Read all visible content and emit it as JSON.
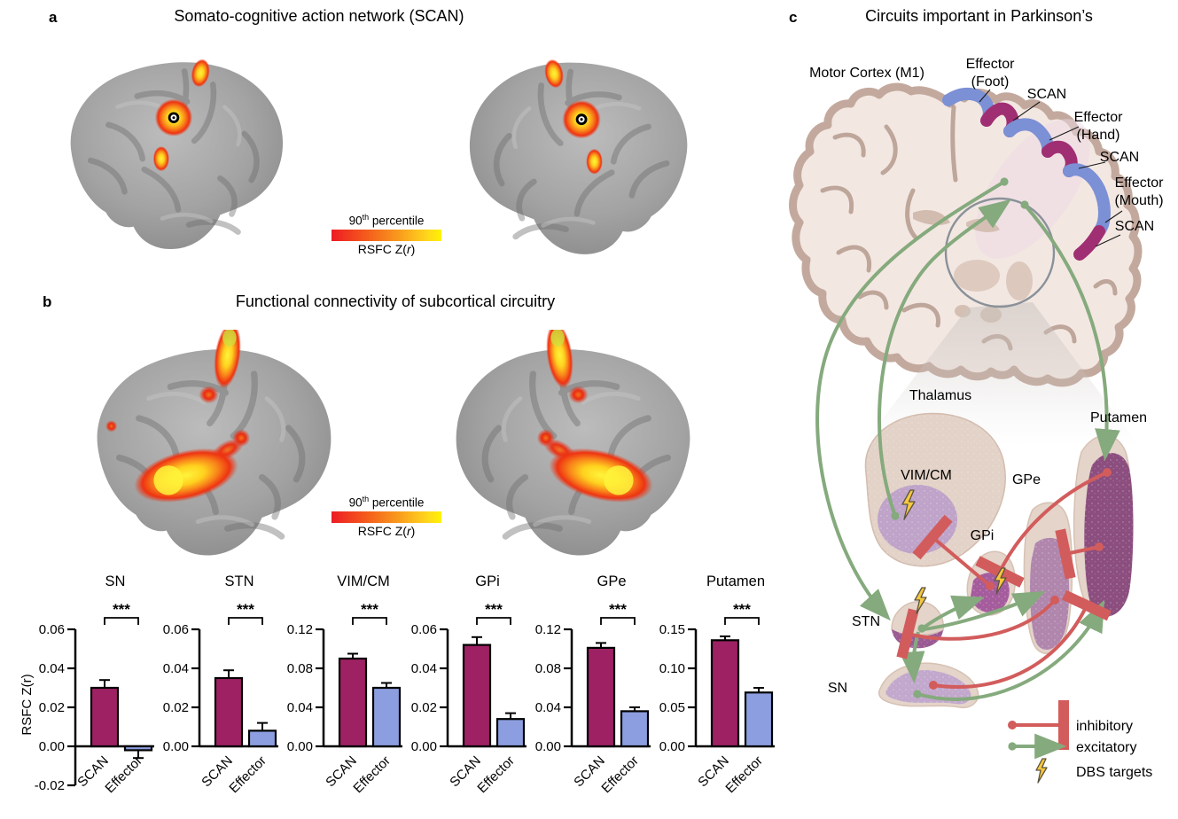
{
  "panel_a": {
    "label": "a",
    "title": "Somato-cognitive action network (SCAN)",
    "colorbar": {
      "percentile_num": "90",
      "percentile_sup": "th",
      "percentile_rest": " percentile",
      "scale_pre": "RSFC Z(",
      "scale_italic": "r",
      "scale_post": ")"
    }
  },
  "panel_b": {
    "label": "b",
    "title": "Functional connectivity of subcortical circuitry",
    "colorbar": {
      "percentile_num": "90",
      "percentile_sup": "th",
      "percentile_rest": " percentile",
      "scale_pre": "RSFC Z(",
      "scale_italic": "r",
      "scale_post": ")"
    }
  },
  "chart_data": {
    "type": "bar",
    "shared": {
      "categories": [
        "SCAN",
        "Effector"
      ],
      "bar_colors": [
        "#9E2164",
        "#8C9EDF"
      ],
      "ylabel": "RSFC Z(r)",
      "significance": "***",
      "grid": false,
      "legend_position": "none"
    },
    "charts": [
      {
        "title": "SN",
        "ylim": [
          -0.02,
          0.06
        ],
        "yticks": [
          -0.02,
          0,
          0.02,
          0.04,
          0.06
        ],
        "values": [
          0.03,
          -0.002
        ],
        "errors": [
          0.004,
          0.004
        ]
      },
      {
        "title": "STN",
        "ylim": [
          0,
          0.06
        ],
        "yticks": [
          0,
          0.02,
          0.04,
          0.06
        ],
        "values": [
          0.035,
          0.008
        ],
        "errors": [
          0.004,
          0.004
        ]
      },
      {
        "title": "VIM/CM",
        "ylim": [
          0,
          0.12
        ],
        "yticks": [
          0,
          0.04,
          0.08,
          0.12
        ],
        "values": [
          0.09,
          0.06
        ],
        "errors": [
          0.005,
          0.005
        ]
      },
      {
        "title": "GPi",
        "ylim": [
          0,
          0.06
        ],
        "yticks": [
          0,
          0.02,
          0.04,
          0.06
        ],
        "values": [
          0.052,
          0.014
        ],
        "errors": [
          0.004,
          0.003
        ]
      },
      {
        "title": "GPe",
        "ylim": [
          0,
          0.12
        ],
        "yticks": [
          0,
          0.04,
          0.08,
          0.12
        ],
        "values": [
          0.101,
          0.036
        ],
        "errors": [
          0.005,
          0.004
        ]
      },
      {
        "title": "Putamen",
        "ylim": [
          0,
          0.15
        ],
        "yticks": [
          0,
          0.05,
          0.1,
          0.15
        ],
        "values": [
          0.136,
          0.069
        ],
        "errors": [
          0.005,
          0.006
        ]
      }
    ]
  },
  "panel_c": {
    "label": "c",
    "title": "Circuits important in Parkinson’s",
    "cortex_labels": {
      "motor_cortex": "Motor Cortex (M1)",
      "effector_foot_line1": "Effector",
      "effector_foot_line2": "(Foot)",
      "scan_top": "SCAN",
      "effector_hand_line1": "Effector",
      "effector_hand_line2": "(Hand)",
      "scan_middle": "SCAN",
      "effector_mouth_line1": "Effector",
      "effector_mouth_line2": "(Mouth)",
      "scan_bottom": "SCAN"
    },
    "structure_labels": {
      "thalamus": "Thalamus",
      "putamen": "Putamen",
      "vim_cm": "VIM/CM",
      "gpe": "GPe",
      "gpi": "GPi",
      "stn": "STN",
      "sn": "SN"
    },
    "legend": {
      "inhibitory": "inhibitory",
      "excitatory": "excitatory",
      "dbs": "DBS targets"
    }
  },
  "colors": {
    "scan_bar": "#9E2164",
    "effector_bar": "#8C9EDF",
    "scan_band": "#A02E72",
    "effector_band": "#7B90D5",
    "inhibitory": "#D25C5C",
    "excitatory": "#85AA7D",
    "dbs_bolt": "#F5C83E",
    "heat_red": "#ED1C24",
    "heat_yellow": "#FFF200"
  }
}
